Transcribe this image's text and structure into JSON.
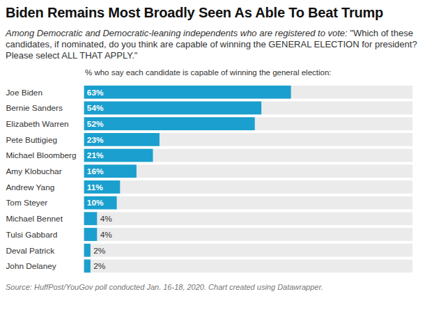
{
  "chart_data": {
    "type": "bar",
    "orientation": "horizontal",
    "title": "Biden Remains Most Broadly Seen As Able To Beat Trump",
    "subtitle": "Among Democratic and Democratic-leaning independents who are registered to vote: \"Which of these candidates, if nominated, do you think are capable of winning the GENERAL ELECTION for president? Please select ALL THAT APPLY.\"",
    "xlabel": "% who say each candidate is capable of winning the general election:",
    "caption": "Source: HuffPost/YouGov poll conducted Jan. 16-18, 2020. Chart created using Datawrapper.",
    "categories": [
      "Joe Biden",
      "Bernie Sanders",
      "Elizabeth Warren",
      "Pete Buttigieg",
      "Michael Bloomberg",
      "Amy Klobuchar",
      "Andrew Yang",
      "Tom Steyer",
      "Michael Bennet",
      "Tulsi Gabbard",
      "Deval Patrick",
      "John Delaney"
    ],
    "values": [
      63,
      54,
      52,
      23,
      21,
      16,
      11,
      10,
      4,
      4,
      2,
      2
    ],
    "value_labels": [
      "63%",
      "54%",
      "52%",
      "23%",
      "21%",
      "16%",
      "11%",
      "10%",
      "4%",
      "4%",
      "2%",
      "2%"
    ],
    "data_labels": true,
    "color": "#1a9fce",
    "xlim": [
      0,
      100
    ],
    "tick_labels": "y",
    "grid": false
  }
}
